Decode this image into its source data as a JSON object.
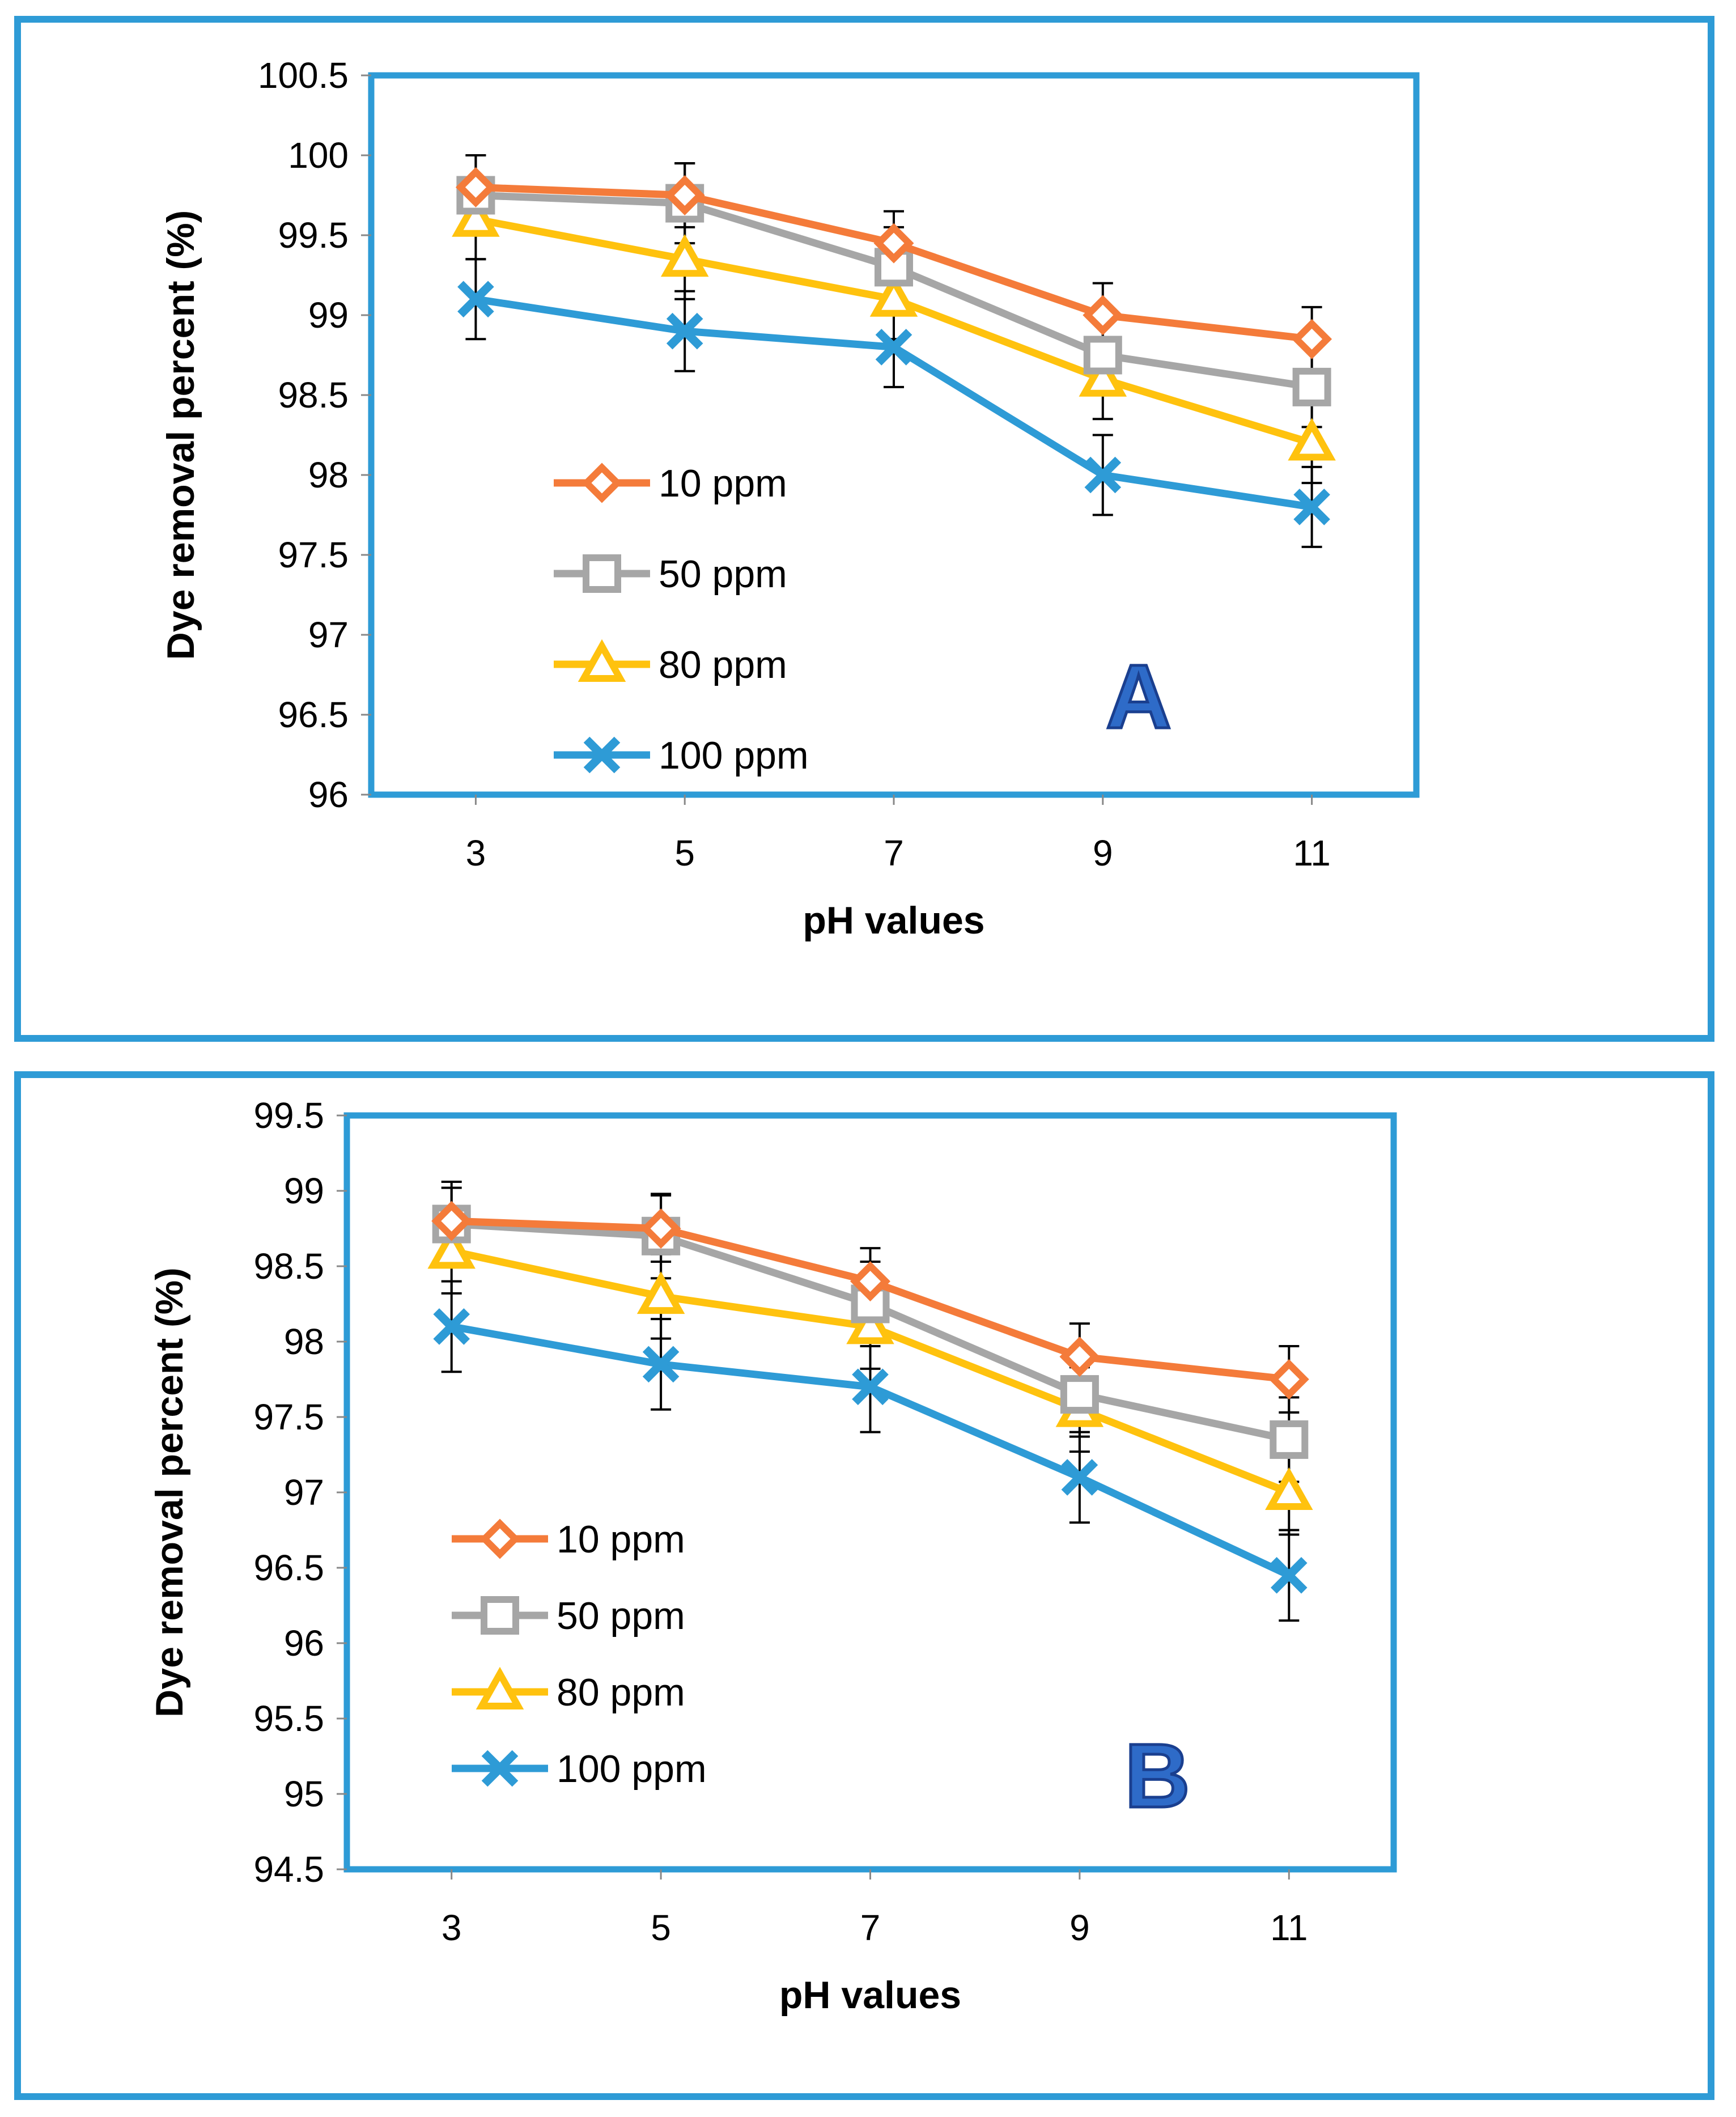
{
  "colors": {
    "frame": "#2e9bd6",
    "s10": "#f47b3a",
    "s50": "#a6a6a6",
    "s80": "#ffc20e",
    "s100": "#2e9bd6",
    "letter_fill": "#2e6bc8",
    "letter_stroke": "#1a3f8f"
  },
  "chart_data": [
    {
      "type": "line",
      "panel_label": "A",
      "xlabel": "pH values",
      "ylabel": "Dye removal percent (%)",
      "x": [
        3,
        5,
        7,
        9,
        11
      ],
      "x_tick_labels": [
        "3",
        "5",
        "7",
        "9",
        "11"
      ],
      "ylim": [
        96,
        100.5
      ],
      "y_tick_labels": [
        "96",
        "96.5",
        "97",
        "97.5",
        "98",
        "98.5",
        "99",
        "99.5",
        "100",
        "100.5"
      ],
      "legend_placement": "center-left",
      "series": [
        {
          "name": "10 ppm",
          "marker": "diamond",
          "values": [
            99.8,
            99.75,
            99.45,
            99.0,
            98.85
          ],
          "error": [
            0.2,
            0.2,
            0.2,
            0.2,
            0.2
          ]
        },
        {
          "name": "50 ppm",
          "marker": "square",
          "values": [
            99.75,
            99.7,
            99.3,
            98.75,
            98.55
          ],
          "error": [
            0.25,
            0.25,
            0.25,
            0.25,
            0.25
          ]
        },
        {
          "name": "80 ppm",
          "marker": "triangle",
          "values": [
            99.6,
            99.35,
            99.1,
            98.6,
            98.2
          ],
          "error": [
            0.25,
            0.25,
            0.25,
            0.25,
            0.25
          ]
        },
        {
          "name": "100 ppm",
          "marker": "x",
          "values": [
            99.1,
            98.9,
            98.8,
            98.0,
            97.8
          ],
          "error": [
            0.25,
            0.25,
            0.25,
            0.25,
            0.25
          ]
        }
      ]
    },
    {
      "type": "line",
      "panel_label": "B",
      "xlabel": "pH values",
      "ylabel": "Dye removal percent (%)",
      "x": [
        3,
        5,
        7,
        9,
        11
      ],
      "x_tick_labels": [
        "3",
        "5",
        "7",
        "9",
        "11"
      ],
      "ylim": [
        94.5,
        99.5
      ],
      "y_tick_labels": [
        "94.5",
        "95",
        "95.5",
        "96",
        "96.5",
        "97",
        "97.5",
        "98",
        "98.5",
        "99",
        "99.5"
      ],
      "legend_placement": "bottom-left",
      "series": [
        {
          "name": "10 ppm",
          "marker": "diamond",
          "values": [
            98.8,
            98.75,
            98.4,
            97.9,
            97.75
          ],
          "error": [
            0.22,
            0.22,
            0.22,
            0.22,
            0.22
          ]
        },
        {
          "name": "50 ppm",
          "marker": "square",
          "values": [
            98.78,
            98.7,
            98.25,
            97.65,
            97.35
          ],
          "error": [
            0.28,
            0.28,
            0.28,
            0.28,
            0.28
          ]
        },
        {
          "name": "80 ppm",
          "marker": "triangle",
          "values": [
            98.6,
            98.3,
            98.1,
            97.55,
            97.0
          ],
          "error": [
            0.28,
            0.28,
            0.28,
            0.28,
            0.28
          ]
        },
        {
          "name": "100 ppm",
          "marker": "x",
          "values": [
            98.1,
            97.85,
            97.7,
            97.1,
            96.45
          ],
          "error": [
            0.3,
            0.3,
            0.3,
            0.3,
            0.3
          ]
        }
      ]
    }
  ]
}
